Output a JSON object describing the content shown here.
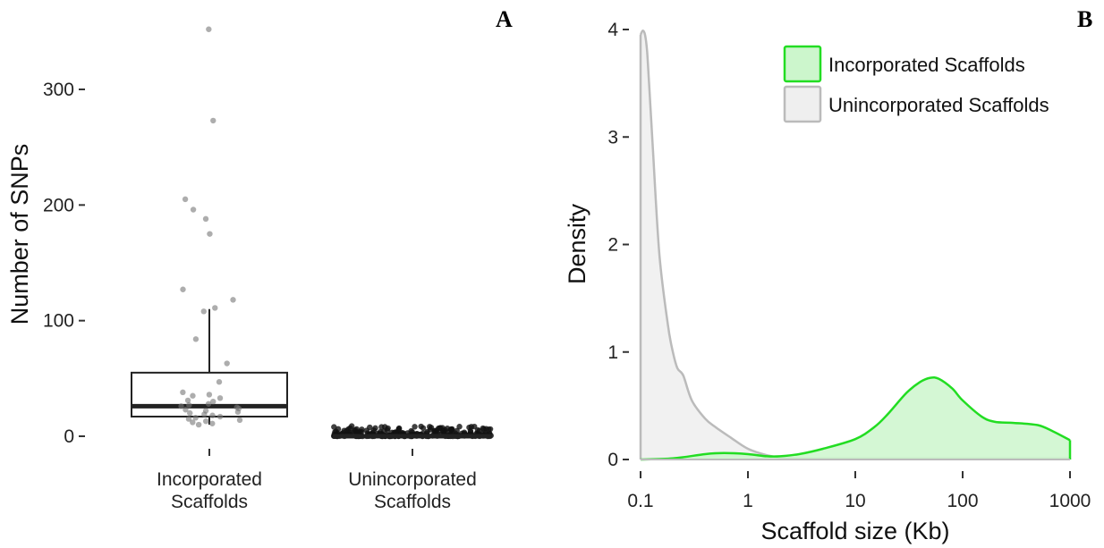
{
  "chart_data": [
    {
      "type": "box",
      "panel_label": "A",
      "ylabel": "Number of SNPs",
      "xlabel": "",
      "ylim": [
        0,
        350
      ],
      "yticks": [
        "0",
        "100",
        "200",
        "300"
      ],
      "grid": false,
      "categories": [
        {
          "line1": "Incorporated",
          "line2": "Scaffolds"
        },
        {
          "line1": "Unincorporated",
          "line2": "Scaffolds"
        }
      ],
      "boxes": [
        {
          "q1": 17,
          "median": 26,
          "q3": 55,
          "whisker_low": 10,
          "whisker_high": 110,
          "points": [
            352,
            273,
            205,
            196,
            188,
            175,
            127,
            118,
            111,
            108,
            84,
            63,
            47,
            38,
            36,
            35,
            33,
            31,
            30,
            28,
            27,
            26,
            25,
            24,
            23,
            22,
            21,
            20,
            19,
            18,
            17,
            16,
            15,
            14,
            13,
            12,
            11,
            10
          ]
        },
        {
          "q1": 0,
          "median": 0,
          "q3": 0,
          "whisker_low": 0,
          "whisker_high": 0,
          "points_range": [
            0,
            9
          ]
        }
      ],
      "colors": {
        "box": "#222222",
        "points": "#777777"
      }
    },
    {
      "type": "area",
      "panel_label": "B",
      "xlabel": "Scaffold size (Kb)",
      "ylabel": "Density",
      "x_scale": "log",
      "xlim": [
        0.1,
        1000
      ],
      "ylim": [
        0,
        4
      ],
      "xticks": [
        "0.1",
        "1",
        "10",
        "100",
        "1000"
      ],
      "yticks": [
        "0",
        "1",
        "2",
        "3",
        "4"
      ],
      "grid": false,
      "legend_position": "top-right",
      "series": [
        {
          "name": "Incorporated Scaffolds",
          "color": "#22dd22",
          "fill": "#ccf6cc",
          "x": [
            0.1,
            0.2,
            0.4,
            0.6,
            1,
            1.5,
            2,
            3,
            5,
            10,
            15,
            20,
            30,
            40,
            50,
            60,
            80,
            100,
            150,
            200,
            300,
            500,
            700,
            1000
          ],
          "y": [
            0,
            0.01,
            0.05,
            0.06,
            0.05,
            0.03,
            0.03,
            0.05,
            0.1,
            0.19,
            0.3,
            0.42,
            0.62,
            0.72,
            0.76,
            0.75,
            0.66,
            0.55,
            0.4,
            0.35,
            0.34,
            0.32,
            0.26,
            0.18
          ]
        },
        {
          "name": "Unincorporated Scaffolds",
          "color": "#bbbbbb",
          "fill": "#efefef",
          "x": [
            0.1,
            0.105,
            0.11,
            0.115,
            0.12,
            0.13,
            0.15,
            0.18,
            0.2,
            0.22,
            0.25,
            0.3,
            0.4,
            0.5,
            0.7,
            1,
            1.5,
            2,
            3,
            5,
            10,
            100,
            1000
          ],
          "y": [
            3.95,
            3.99,
            3.95,
            3.8,
            3.5,
            2.9,
            1.9,
            1.25,
            1.0,
            0.85,
            0.78,
            0.55,
            0.38,
            0.3,
            0.2,
            0.1,
            0.04,
            0.02,
            0.01,
            0.01,
            0.01,
            0.01,
            0.01
          ]
        }
      ]
    }
  ]
}
